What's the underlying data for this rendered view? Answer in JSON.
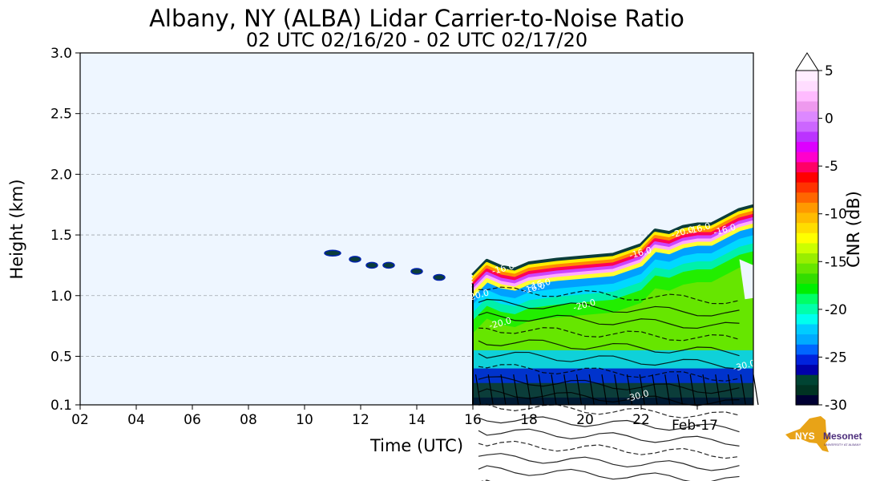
{
  "chart_data": {
    "type": "heatmap",
    "title": "Albany, NY (ALBA) Lidar Carrier-to-Noise Ratio",
    "subtitle": "02 UTC 02/16/20 - 02 UTC 02/17/20",
    "xlabel": "Time (UTC)",
    "ylabel": "Height (km)",
    "xlim": [
      2,
      26
    ],
    "ylim": [
      0.1,
      3.0
    ],
    "x_ticks": [
      {
        "value": 2,
        "label": "02"
      },
      {
        "value": 4,
        "label": "04"
      },
      {
        "value": 6,
        "label": "06"
      },
      {
        "value": 8,
        "label": "08"
      },
      {
        "value": 10,
        "label": "10"
      },
      {
        "value": 12,
        "label": "12"
      },
      {
        "value": 14,
        "label": "14"
      },
      {
        "value": 16,
        "label": "16"
      },
      {
        "value": 18,
        "label": "18"
      },
      {
        "value": 20,
        "label": "20"
      },
      {
        "value": 22,
        "label": "22"
      }
    ],
    "x_date_label": {
      "value": 24,
      "label": "Feb-17"
    },
    "y_ticks": [
      {
        "value": 0.1,
        "label": "0.1"
      },
      {
        "value": 0.5,
        "label": "0.5"
      },
      {
        "value": 1.0,
        "label": "1.0"
      },
      {
        "value": 1.5,
        "label": "1.5"
      },
      {
        "value": 2.0,
        "label": "2.0"
      },
      {
        "value": 2.5,
        "label": "2.5"
      },
      {
        "value": 3.0,
        "label": "3.0"
      }
    ],
    "grid": "horizontal dashed",
    "background_color": "#eef6ff",
    "colorbar": {
      "label": "CNR (dB)",
      "min": -30,
      "max": 5,
      "ticks": [
        {
          "value": 5,
          "label": "5"
        },
        {
          "value": 0,
          "label": "0"
        },
        {
          "value": -5,
          "label": "-5"
        },
        {
          "value": -10,
          "label": "-10"
        },
        {
          "value": -15,
          "label": "-15"
        },
        {
          "value": -20,
          "label": "-20"
        },
        {
          "value": -25,
          "label": "-25"
        },
        {
          "value": -30,
          "label": "-30"
        }
      ],
      "colors": [
        "#000033",
        "#003322",
        "#004433",
        "#0000aa",
        "#0022dd",
        "#0066ff",
        "#00aaff",
        "#00ccff",
        "#00ffee",
        "#00ffaa",
        "#00ff66",
        "#00ee00",
        "#33dd00",
        "#66e600",
        "#99ee00",
        "#ccff00",
        "#ffff00",
        "#ffdd00",
        "#ffbb00",
        "#ff9900",
        "#ff6600",
        "#ff3300",
        "#ff0000",
        "#ff0066",
        "#ff00cc",
        "#dd00ff",
        "#bb33ff",
        "#cc66ff",
        "#dd88ff",
        "#ee99ee",
        "#ffbbff",
        "#ffddff",
        "#ffeeff"
      ]
    },
    "contour_labels": [
      "-16.0",
      "-16.0",
      "-16.0",
      "-16.0",
      "-20.0",
      "-30.0",
      "-30.0",
      "-20.0",
      "-16.0",
      "-16.0",
      "-20.0",
      "-20.0"
    ],
    "series": [
      {
        "name": "cloud base (km)",
        "x": [
          16.0,
          16.5,
          17.0,
          17.5,
          18.0,
          19.0,
          20.0,
          21.0,
          22.0,
          22.5,
          23.0,
          23.5,
          24.0,
          24.5,
          25.0,
          25.5,
          26.0
        ],
        "values": [
          1.1,
          1.22,
          1.17,
          1.15,
          1.2,
          1.23,
          1.25,
          1.27,
          1.35,
          1.47,
          1.45,
          1.5,
          1.52,
          1.52,
          1.58,
          1.64,
          1.67
        ]
      }
    ],
    "elevated_echoes": [
      {
        "x": 11.0,
        "y": 1.35
      },
      {
        "x": 11.8,
        "y": 1.3
      },
      {
        "x": 12.4,
        "y": 1.25
      },
      {
        "x": 13.0,
        "y": 1.25
      },
      {
        "x": 14.0,
        "y": 1.2
      },
      {
        "x": 14.8,
        "y": 1.15
      }
    ]
  },
  "logo": {
    "primary": "NYS",
    "secondary": "Mesonet",
    "tagline": "UNIVERSITY AT ALBANY"
  },
  "colors": {
    "logo_gold": "#e8a317",
    "logo_purple": "#4b2c7a"
  }
}
